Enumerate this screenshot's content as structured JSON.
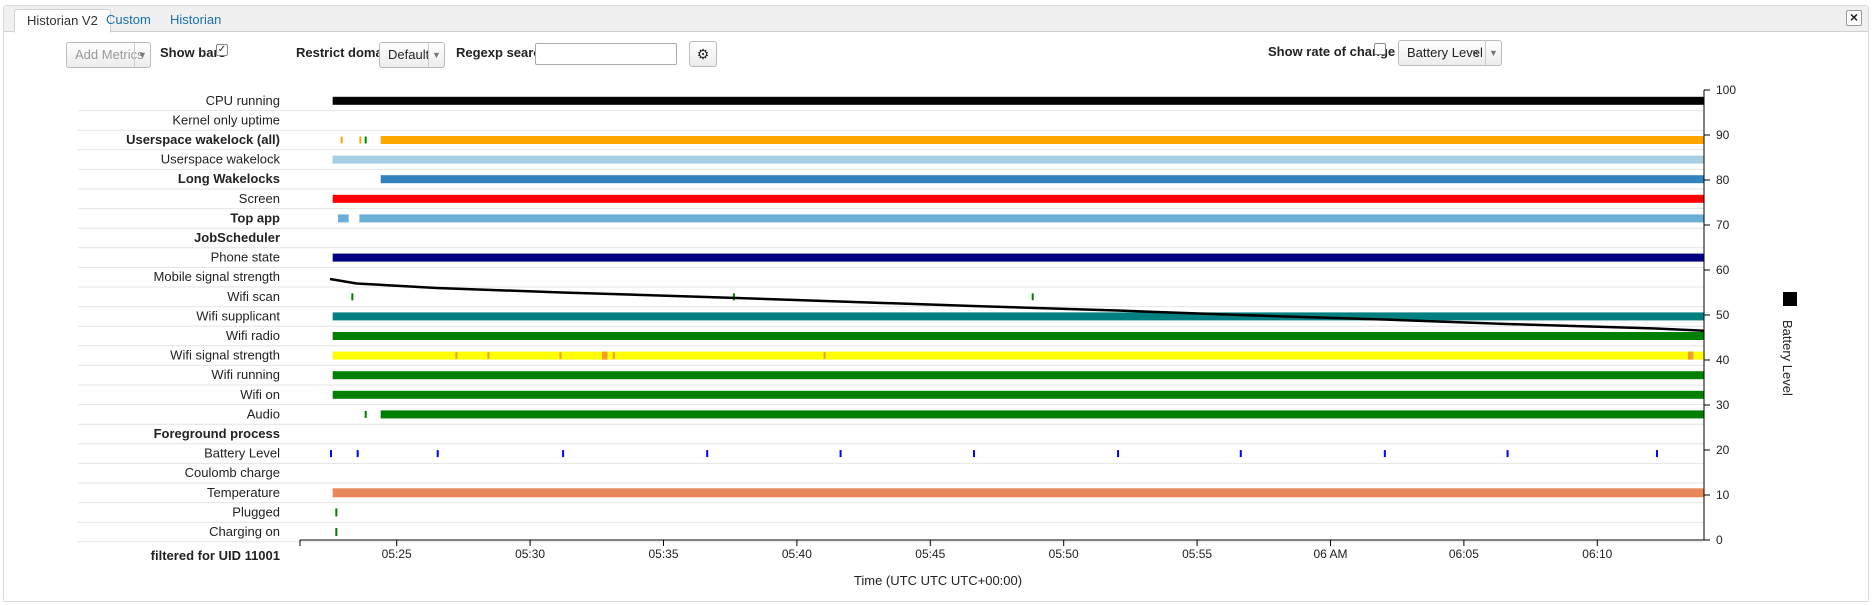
{
  "tabs": [
    {
      "label": "Historian V2",
      "active": true
    },
    {
      "label": "Custom",
      "active": false
    },
    {
      "label": "Historian",
      "active": false
    }
  ],
  "toolbar": {
    "add_metrics_placeholder": "Add Metrics",
    "show_bars_label": "Show bars",
    "show_bars_checked": true,
    "restrict_domain_label": "Restrict domain",
    "restrict_domain_value": "Default",
    "regexp_label": "Regexp search",
    "regexp_value": "",
    "show_rate_label": "Show rate of change",
    "show_rate_checked": false,
    "metric_select_value": "Battery Level",
    "close_glyph": "×",
    "gear_icon": "gear-icon"
  },
  "timeline": {
    "rows": [
      {
        "label": "CPU running",
        "bold": false
      },
      {
        "label": "Kernel only uptime",
        "bold": false
      },
      {
        "label": "Userspace wakelock (all)",
        "bold": true
      },
      {
        "label": "Userspace wakelock",
        "bold": false
      },
      {
        "label": "Long Wakelocks",
        "bold": true
      },
      {
        "label": "Screen",
        "bold": false
      },
      {
        "label": "Top app",
        "bold": true
      },
      {
        "label": "JobScheduler",
        "bold": true
      },
      {
        "label": "Phone state",
        "bold": false
      },
      {
        "label": "Mobile signal strength",
        "bold": false
      },
      {
        "label": "Wifi scan",
        "bold": false
      },
      {
        "label": "Wifi supplicant",
        "bold": false
      },
      {
        "label": "Wifi radio",
        "bold": false
      },
      {
        "label": "Wifi signal strength",
        "bold": false
      },
      {
        "label": "Wifi running",
        "bold": false
      },
      {
        "label": "Wifi on",
        "bold": false
      },
      {
        "label": "Audio",
        "bold": false
      },
      {
        "label": "Foreground process",
        "bold": true
      },
      {
        "label": "Battery Level",
        "bold": false
      },
      {
        "label": "Coulomb charge",
        "bold": false
      },
      {
        "label": "Temperature",
        "bold": false
      },
      {
        "label": "Plugged",
        "bold": false
      },
      {
        "label": "Charging on",
        "bold": false
      }
    ],
    "filter_label": "filtered for UID 11001",
    "colors": {
      "black": "#000000",
      "orange": "#ffa500",
      "lightblue": "#a6cee3",
      "blue": "#3182bd",
      "red": "#ff0000",
      "skyblue": "#6baed6",
      "navy": "#000080",
      "green": "#008000",
      "teal": "#008080",
      "yellow": "#ffff00",
      "salmon": "#e8875a",
      "tick_blue": "#0000ff"
    }
  },
  "chart_data": {
    "type": "line",
    "xlabel": "Time (UTC UTC UTC+00:00)",
    "x_ticks": [
      "05:25",
      "05:30",
      "05:35",
      "05:40",
      "05:45",
      "05:50",
      "05:55",
      "06 AM",
      "06:05",
      "06:10"
    ],
    "x_tick_minutes": [
      25,
      30,
      35,
      40,
      45,
      50,
      55,
      60,
      65,
      70
    ],
    "xlim_minutes": [
      22.5,
      74
    ],
    "ylabel": "Battery Level",
    "ylim": [
      0,
      100
    ],
    "y_ticks": [
      0,
      10,
      20,
      30,
      40,
      50,
      60,
      70,
      80,
      90,
      100
    ],
    "series": [
      {
        "name": "Battery Level",
        "x_minutes": [
          22.5,
          23.5,
          26.5,
          31.2,
          36.6,
          41.6,
          46.6,
          52,
          56.6,
          62,
          66.6,
          72.2,
          74
        ],
        "values": [
          58,
          57,
          56,
          55,
          54,
          53,
          52,
          51,
          50,
          49,
          48,
          47,
          46.5
        ]
      }
    ],
    "legend": "right"
  }
}
